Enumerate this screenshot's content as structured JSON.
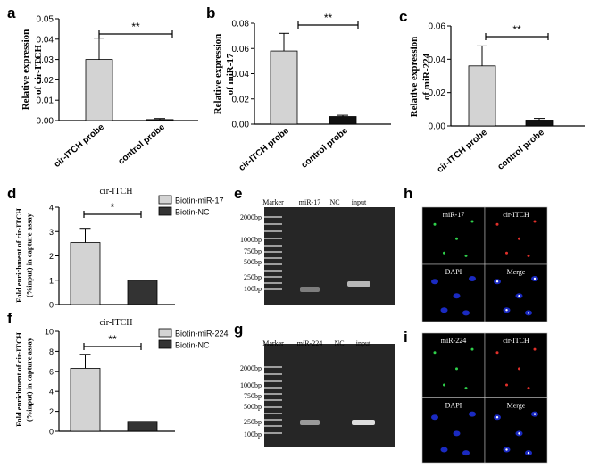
{
  "panel_letters": [
    "a",
    "b",
    "c",
    "d",
    "e",
    "f",
    "g",
    "h",
    "i"
  ],
  "colors": {
    "bar_light": "#d3d3d3",
    "bar_dark": "#111111",
    "gel_bg": "#262626",
    "micro_bg": "#000000"
  },
  "chart_data": [
    {
      "panel": "a",
      "type": "bar",
      "categories": [
        "cir-ITCH probe",
        "control probe"
      ],
      "values": [
        0.03,
        0.0005
      ],
      "errors": [
        0.0105,
        0.0005
      ],
      "bar_colors": [
        "#d3d3d3",
        "#111111"
      ],
      "ylabel": "Relative expression\nof cir-ITCH",
      "ylim": [
        0,
        0.05
      ],
      "yticks": [
        "0.00",
        "0.01",
        "0.02",
        "0.03",
        "0.04",
        "0.05"
      ],
      "significance": "**"
    },
    {
      "panel": "b",
      "type": "bar",
      "categories": [
        "cir-ITCH probe",
        "control probe"
      ],
      "values": [
        0.058,
        0.006
      ],
      "errors": [
        0.014,
        0.001
      ],
      "bar_colors": [
        "#d3d3d3",
        "#111111"
      ],
      "ylabel": "Relative expression\nof miR-17",
      "ylim": [
        0,
        0.08
      ],
      "yticks": [
        "0.00",
        "0.02",
        "0.04",
        "0.06",
        "0.08"
      ],
      "significance": "**"
    },
    {
      "panel": "c",
      "type": "bar",
      "categories": [
        "cir-ITCH probe",
        "control probe"
      ],
      "values": [
        0.036,
        0.0035
      ],
      "errors": [
        0.012,
        0.001
      ],
      "bar_colors": [
        "#d3d3d3",
        "#111111"
      ],
      "ylabel": "Relative expression\nof miR-224",
      "ylim": [
        0,
        0.06
      ],
      "yticks": [
        "0.00",
        "0.02",
        "0.04",
        "0.06"
      ],
      "significance": "**"
    },
    {
      "panel": "d",
      "type": "bar",
      "title": "cir-ITCH",
      "categories": [
        "Biotin-miR-17",
        "Biotin-NC"
      ],
      "values": [
        2.55,
        1.0
      ],
      "errors": [
        0.58,
        0
      ],
      "bar_colors": [
        "#d3d3d3",
        "#333333"
      ],
      "ylabel": "Fold enrichment of cir-ITCH\n(%input) in capture assay",
      "ylim": [
        0,
        4
      ],
      "yticks": [
        "0",
        "1",
        "2",
        "3",
        "4"
      ],
      "legend": [
        "Biotin-miR-17",
        "Biotin-NC"
      ],
      "legend_position": "right",
      "significance": "*"
    },
    {
      "panel": "f",
      "type": "bar",
      "title": "cir-ITCH",
      "categories": [
        "Biotin-miR-224",
        "Biotin-NC"
      ],
      "values": [
        6.3,
        1.0
      ],
      "errors": [
        1.4,
        0
      ],
      "bar_colors": [
        "#d3d3d3",
        "#333333"
      ],
      "ylabel": "Fold enrichment of cir-ITCH\n(%input) in capture assay",
      "ylim": [
        0,
        10
      ],
      "yticks": [
        "0",
        "2",
        "4",
        "6",
        "8",
        "10"
      ],
      "legend": [
        "Biotin-miR-224",
        "Biotin-NC"
      ],
      "legend_position": "right",
      "significance": "**"
    }
  ],
  "gels": [
    {
      "panel": "e",
      "lane_labels": [
        "Marker",
        "miR-17",
        "NC",
        "input"
      ],
      "size_labels": [
        "2000bp",
        "1000bp",
        "750bp",
        "500bp",
        "250bp",
        "100bp"
      ]
    },
    {
      "panel": "g",
      "lane_labels": [
        "Marker",
        "miR-224",
        "NC",
        "input"
      ],
      "size_labels": [
        "2000bp",
        "1000bp",
        "750bp",
        "500bp",
        "250bp",
        "100bp"
      ]
    }
  ],
  "micrographs": [
    {
      "panel": "h",
      "quadrant_labels": [
        "miR-17",
        "cir-ITCH",
        "DAPI",
        "Merge"
      ]
    },
    {
      "panel": "i",
      "quadrant_labels": [
        "miR-224",
        "cir-ITCH",
        "DAPI",
        "Merge"
      ]
    }
  ]
}
